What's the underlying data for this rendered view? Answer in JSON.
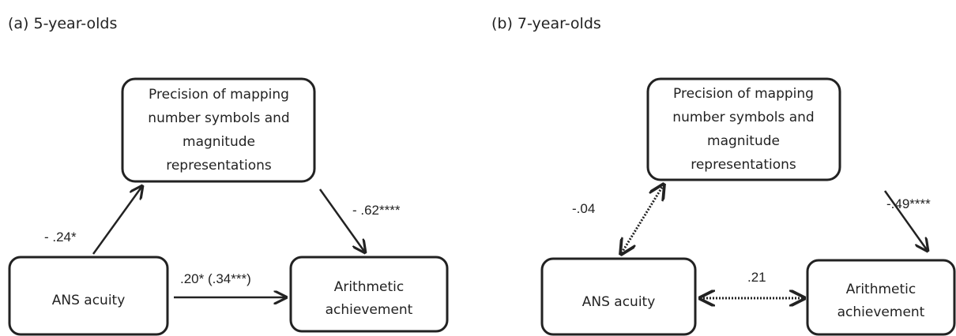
{
  "panels": [
    {
      "title": "(a) 5-year-olds",
      "nodes": [
        {
          "lines": [
            "Precision of mapping",
            "number symbols and",
            "magnitude",
            "representations"
          ]
        },
        {
          "lines": [
            "ANS acuity"
          ]
        },
        {
          "lines": [
            "Arithmetic",
            "achievement"
          ]
        }
      ],
      "edges": [
        {
          "label": "- .24*"
        },
        {
          "label": "- .62****"
        },
        {
          "label": ".20* (.34***)"
        }
      ]
    },
    {
      "title": "(b) 7-year-olds",
      "nodes": [
        {
          "lines": [
            "Precision of mapping",
            "number symbols and",
            "magnitude",
            "representations"
          ]
        },
        {
          "lines": [
            "ANS acuity"
          ]
        },
        {
          "lines": [
            "Arithmetic",
            "achievement"
          ]
        }
      ],
      "edges": [
        {
          "label": "-.04"
        },
        {
          "label": "-.49****"
        },
        {
          "label": ".21"
        }
      ]
    }
  ]
}
